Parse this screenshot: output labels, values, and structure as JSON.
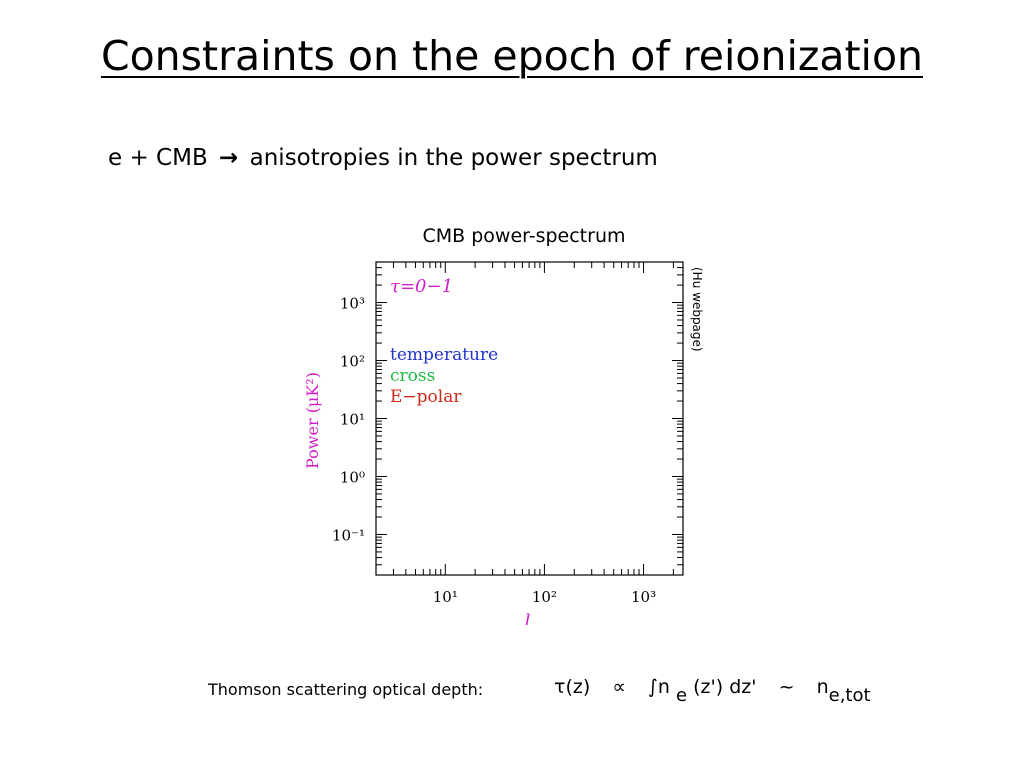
{
  "slide": {
    "title": "Constraints on the epoch of reionization",
    "bullet_prefix": "e + CMB",
    "bullet_text": "anisotropies in the power spectrum",
    "plot_title": "CMB power-spectrum",
    "credit": "(Hu webpage)",
    "thomson_label": "Thomson scattering optical depth:",
    "formula": {
      "lhs": "τ(z)",
      "prop": "∝",
      "integral": "∫",
      "n": "n",
      "e_sub": "e",
      "zprime": "(z') dz'",
      "approx": "~",
      "n2": "n",
      "etot_sub": "e,tot"
    }
  },
  "chart_data": {
    "type": "line",
    "title": "",
    "xlabel": "l",
    "ylabel": "Power (μK²)",
    "x_scale": "log",
    "y_scale": "log",
    "xlim": [
      2,
      2500
    ],
    "ylim": [
      0.02,
      5000
    ],
    "x_ticks": [
      10,
      100,
      1000
    ],
    "x_tick_labels": [
      "10¹",
      "10²",
      "10³"
    ],
    "y_ticks": [
      0.1,
      1,
      10,
      100,
      1000
    ],
    "y_tick_labels": [
      "10⁻¹",
      "10⁰",
      "10¹",
      "10²",
      "10³"
    ],
    "grid": false,
    "annotation": "τ=0−1",
    "legend_placement": "upper-left",
    "series": [
      {
        "name": "temperature",
        "values": []
      },
      {
        "name": "cross",
        "values": []
      },
      {
        "name": "E−polar",
        "values": []
      }
    ],
    "colors": {
      "annotation": "#d21fc9",
      "temperature": "#2233cc",
      "cross": "#22bb44",
      "E-polar": "#cc2a1a",
      "axis_label": "#d21fc9"
    }
  }
}
